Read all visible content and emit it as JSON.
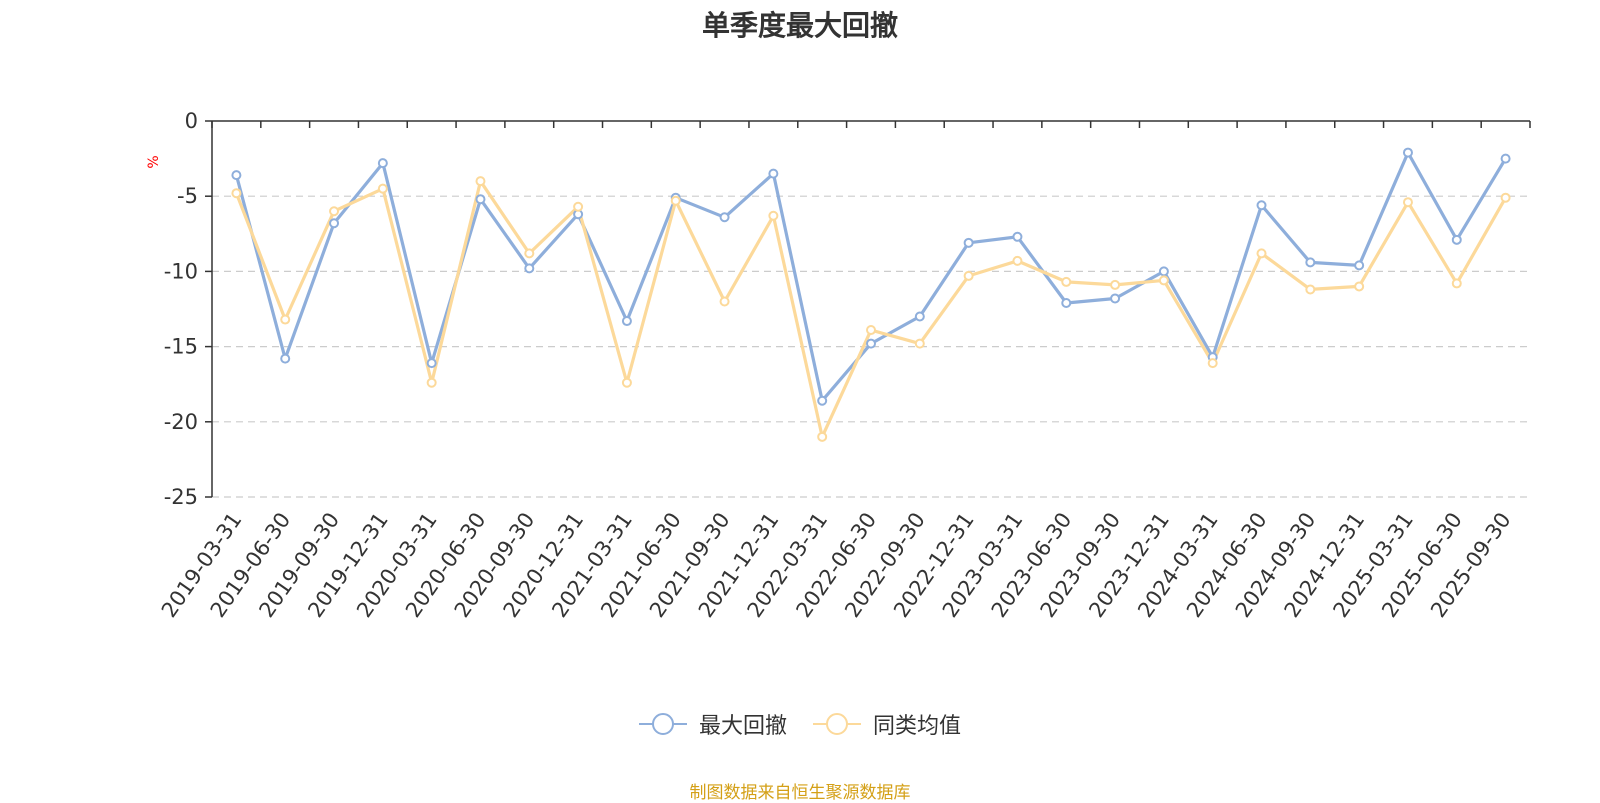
{
  "chart_data": {
    "type": "line",
    "title": "单季度最大回撤",
    "ylabel": "%",
    "xlabel": "",
    "ylim": [
      -25,
      0
    ],
    "yticks": [
      0,
      -5,
      -10,
      -15,
      -20,
      -25
    ],
    "grid": true,
    "legend_position": "bottom",
    "categories": [
      "2019-03-31",
      "2019-06-30",
      "2019-09-30",
      "2019-12-31",
      "2020-03-31",
      "2020-06-30",
      "2020-09-30",
      "2020-12-31",
      "2021-03-31",
      "2021-06-30",
      "2021-09-30",
      "2021-12-31",
      "2022-03-31",
      "2022-06-30",
      "2022-09-30",
      "2022-12-31",
      "2023-03-31",
      "2023-06-30",
      "2023-09-30",
      "2023-12-31",
      "2024-03-31",
      "2024-06-30",
      "2024-09-30",
      "2024-12-31",
      "2025-03-31",
      "2025-06-30",
      "2025-09-30"
    ],
    "series": [
      {
        "name": "最大回撤",
        "color": "#8eaedb",
        "values": [
          -3.6,
          -15.8,
          -6.8,
          -2.8,
          -16.1,
          -5.2,
          -9.8,
          -6.2,
          -13.3,
          -5.1,
          -6.4,
          -3.5,
          -18.6,
          -14.8,
          -13.0,
          -8.1,
          -7.7,
          -12.1,
          -11.8,
          -10.0,
          -15.7,
          -5.6,
          -9.4,
          -9.6,
          -2.1,
          -7.9,
          -2.5
        ]
      },
      {
        "name": "同类均值",
        "color": "#fcd99a",
        "values": [
          -4.8,
          -13.2,
          -6.0,
          -4.5,
          -17.4,
          -4.0,
          -8.8,
          -5.7,
          -17.4,
          -5.3,
          -12.0,
          -6.3,
          -21.0,
          -13.9,
          -14.8,
          -10.3,
          -9.3,
          -10.7,
          -10.9,
          -10.6,
          -16.1,
          -8.8,
          -11.2,
          -11.0,
          -5.4,
          -10.8,
          -5.1
        ]
      }
    ]
  },
  "source_note": "制图数据来自恒生聚源数据库"
}
